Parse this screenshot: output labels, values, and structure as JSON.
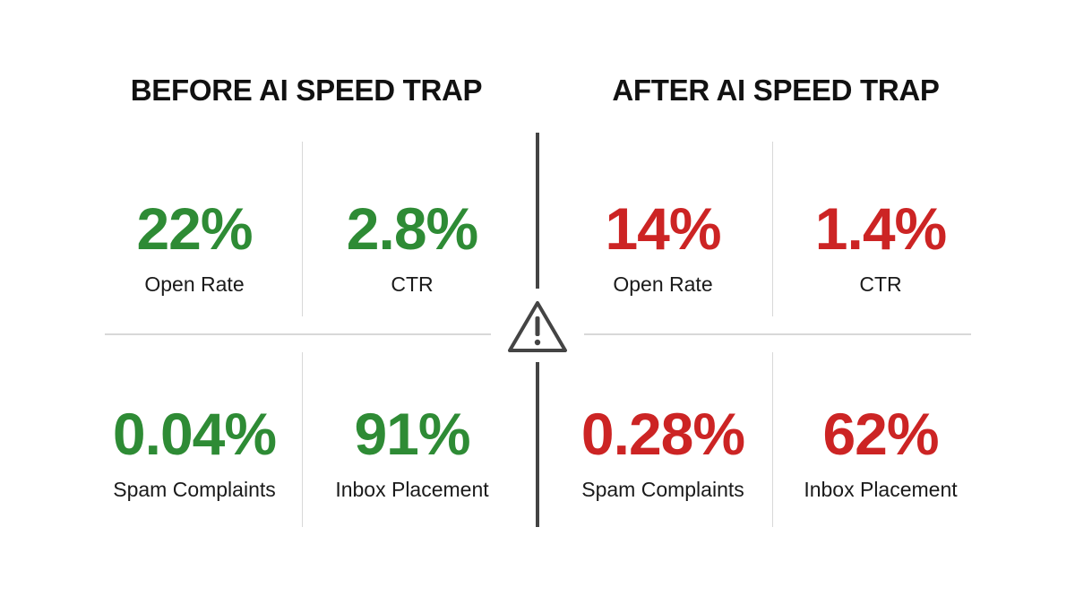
{
  "headings": {
    "before": "BEFORE AI SPEED TRAP",
    "after": "AFTER AI SPEED TRAP"
  },
  "before": {
    "open_rate": {
      "value": "22%",
      "label": "Open Rate"
    },
    "ctr": {
      "value": "2.8%",
      "label": "CTR"
    },
    "spam_complaints": {
      "value": "0.04%",
      "label": "Spam Complaints"
    },
    "inbox_placement": {
      "value": "91%",
      "label": "Inbox Placement"
    }
  },
  "after": {
    "open_rate": {
      "value": "14%",
      "label": "Open Rate"
    },
    "ctr": {
      "value": "1.4%",
      "label": "CTR"
    },
    "spam_complaints": {
      "value": "0.28%",
      "label": "Spam Complaints"
    },
    "inbox_placement": {
      "value": "62%",
      "label": "Inbox Placement"
    }
  },
  "icons": {
    "center": "warning-icon"
  },
  "colors": {
    "before_values": "#2e8b35",
    "after_values": "#cc2424",
    "divider": "#444444",
    "gridlines": "#d8d8d8"
  }
}
